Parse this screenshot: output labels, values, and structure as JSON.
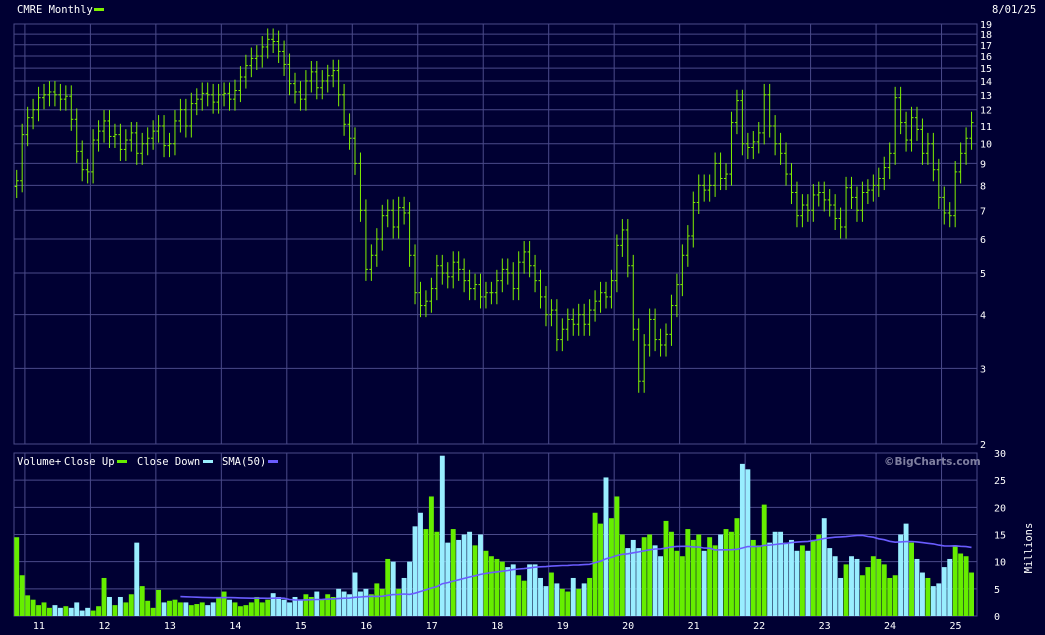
{
  "header": {
    "symbol_label": "CMRE Monthly",
    "date": "8/01/25"
  },
  "volume_legend": {
    "label": "Volume+",
    "close_up": "Close Up",
    "close_down": "Close Down",
    "sma": "SMA(50)"
  },
  "watermark": "©BigCharts.com",
  "colors": {
    "background": "#000033",
    "grid": "#4a4a8a",
    "price_bar": "#7ff000",
    "up_volume": "#66ee00",
    "down_volume": "#99eeff",
    "sma": "#6a5cff",
    "text": "#ffffff"
  },
  "chart_data": [
    {
      "type": "ohlc",
      "title": "CMRE Monthly",
      "scale": "log",
      "ylim": [
        2,
        19
      ],
      "y_ticks": [
        2,
        3,
        4,
        5,
        6,
        7,
        8,
        9,
        10,
        11,
        12,
        13,
        14,
        15,
        16,
        17,
        18,
        19
      ],
      "x_ticks": [
        "11",
        "12",
        "13",
        "14",
        "15",
        "16",
        "17",
        "18",
        "19",
        "20",
        "21",
        "22",
        "23",
        "24",
        "25"
      ],
      "start": "2010-11",
      "grid": true,
      "series": [
        {
          "name": "CMRE Monthly",
          "closes": [
            8.2,
            10.5,
            11.5,
            12.0,
            12.8,
            13.0,
            13.2,
            13.0,
            12.7,
            12.9,
            11.4,
            9.6,
            8.7,
            8.6,
            10.2,
            10.7,
            11.3,
            10.4,
            10.5,
            9.7,
            10.2,
            10.6,
            9.5,
            10.0,
            10.3,
            10.7,
            11.0,
            9.9,
            10.0,
            11.3,
            12.0,
            11.0,
            12.4,
            12.7,
            13.1,
            13.0,
            12.5,
            13.0,
            13.1,
            12.7,
            13.3,
            14.3,
            15.2,
            15.8,
            16.0,
            16.8,
            17.5,
            17.3,
            16.4,
            15.3,
            13.8,
            13.2,
            12.7,
            14.0,
            14.7,
            13.5,
            14.0,
            14.4,
            14.8,
            13.0,
            11.1,
            10.3,
            9.0,
            7.0,
            5.1,
            5.5,
            6.0,
            6.8,
            7.0,
            6.4,
            7.1,
            6.9,
            5.5,
            4.5,
            4.2,
            4.3,
            4.6,
            5.2,
            5.0,
            4.9,
            5.3,
            5.1,
            4.8,
            4.6,
            4.7,
            4.4,
            4.5,
            4.5,
            4.8,
            5.1,
            5.0,
            4.6,
            5.3,
            5.6,
            5.2,
            4.8,
            4.4,
            4.0,
            4.1,
            3.5,
            3.7,
            3.9,
            3.8,
            4.0,
            3.8,
            4.1,
            4.3,
            4.5,
            4.4,
            4.8,
            5.8,
            6.3,
            5.2,
            3.7,
            2.8,
            3.4,
            3.9,
            3.5,
            3.4,
            3.6,
            4.2,
            4.7,
            5.5,
            6.1,
            7.3,
            8.0,
            7.8,
            8.0,
            9.0,
            8.3,
            8.5,
            11.2,
            12.6,
            10.0,
            9.8,
            10.1,
            10.6,
            13.0,
            11.0,
            10.0,
            9.5,
            8.5,
            7.7,
            6.8,
            7.2,
            7.0,
            7.6,
            7.7,
            7.4,
            7.2,
            6.7,
            6.4,
            7.9,
            7.5,
            7.0,
            7.7,
            7.8,
            8.0,
            8.3,
            8.8,
            9.5,
            12.8,
            11.2,
            10.2,
            11.5,
            10.8,
            9.5,
            10.0,
            8.7,
            7.5,
            6.9,
            6.8,
            8.6,
            9.5,
            10.3,
            11.2
          ]
        }
      ]
    },
    {
      "type": "bar",
      "title": "Volume+",
      "unit": "Millions",
      "ylim": [
        0,
        30
      ],
      "y_ticks": [
        0,
        5,
        10,
        15,
        20,
        25,
        30
      ],
      "sma_period": 50,
      "series": [
        {
          "name": "Volume",
          "values": [
            14.5,
            7.5,
            3.8,
            3.0,
            2.0,
            2.5,
            1.5,
            2.0,
            1.5,
            1.8,
            1.5,
            2.5,
            1.0,
            1.5,
            1.0,
            1.8,
            7.0,
            3.5,
            2.0,
            3.5,
            2.5,
            4.0,
            13.5,
            5.5,
            2.8,
            1.5,
            4.8,
            2.5,
            2.8,
            3.0,
            2.5,
            2.5,
            2.0,
            2.2,
            2.5,
            2.0,
            2.5,
            3.5,
            4.5,
            3.0,
            2.5,
            1.8,
            2.0,
            2.5,
            3.5,
            2.5,
            3.0,
            4.2,
            3.5,
            3.0,
            2.5,
            3.5,
            3.0,
            4.0,
            3.5,
            4.5,
            3.0,
            4.0,
            3.5,
            5.0,
            4.5,
            4.0,
            8.0,
            4.5,
            5.0,
            4.0,
            6.0,
            5.0,
            10.5,
            10.0,
            5.0,
            7.0,
            10.0,
            16.5,
            19.0,
            16.0,
            22.0,
            15.5,
            29.5,
            13.5,
            16.0,
            14.0,
            15.0,
            15.5,
            13.0,
            15.0,
            12.0,
            11.0,
            10.5,
            10.0,
            9.0,
            9.5,
            7.5,
            6.5,
            9.5,
            9.5,
            7.0,
            5.5,
            8.0,
            6.0,
            5.0,
            4.5,
            7.0,
            5.0,
            6.0,
            7.0,
            19.0,
            17.0,
            25.5,
            18.0,
            22.0,
            15.0,
            12.5,
            14.0,
            12.5,
            14.5,
            15.0,
            13.0,
            11.0,
            17.5,
            15.5,
            12.0,
            11.0,
            16.0,
            14.0,
            15.0,
            12.0,
            14.5,
            13.0,
            15.0,
            16.0,
            15.5,
            18.0,
            28.0,
            27.0,
            14.0,
            13.0,
            20.5,
            13.5,
            15.5,
            15.5,
            13.5,
            14.0,
            12.0,
            13.0,
            12.0,
            14.0,
            15.0,
            18.0,
            12.5,
            11.0,
            7.0,
            9.5,
            11.0,
            10.5,
            7.5,
            9.0,
            11.0,
            10.5,
            9.5,
            7.0,
            7.5,
            15.0,
            17.0,
            13.5,
            10.5,
            8.0,
            7.0,
            5.5,
            6.0,
            9.0,
            10.5,
            13.0,
            11.5,
            11.0,
            8.0
          ]
        }
      ],
      "direction_note_source": "close-over-close"
    }
  ]
}
